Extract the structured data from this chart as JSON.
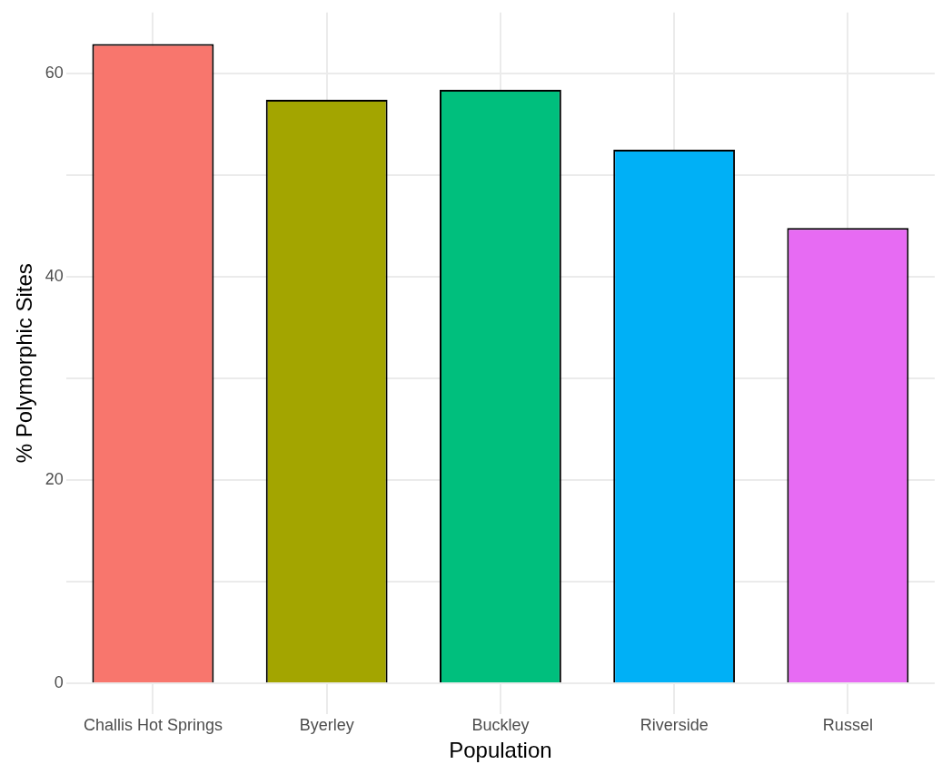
{
  "chart_data": {
    "type": "bar",
    "xlabel": "Population",
    "ylabel": "% Polymorphic Sites",
    "categories": [
      "Challis Hot Springs",
      "Byerley",
      "Buckley",
      "Riverside",
      "Russel"
    ],
    "values": [
      62.9,
      57.4,
      58.4,
      52.5,
      44.8
    ],
    "colors": [
      "#f8766d",
      "#a3a500",
      "#00bf7d",
      "#00b0f6",
      "#e76bf3"
    ],
    "ylim": [
      -3,
      66
    ],
    "yticks": [
      0,
      {
        "value": 10,
        "label": null
      },
      20,
      {
        "value": 30,
        "label": null
      },
      40,
      {
        "value": 50,
        "label": null
      },
      60
    ],
    "grid": true,
    "legend": false
  }
}
